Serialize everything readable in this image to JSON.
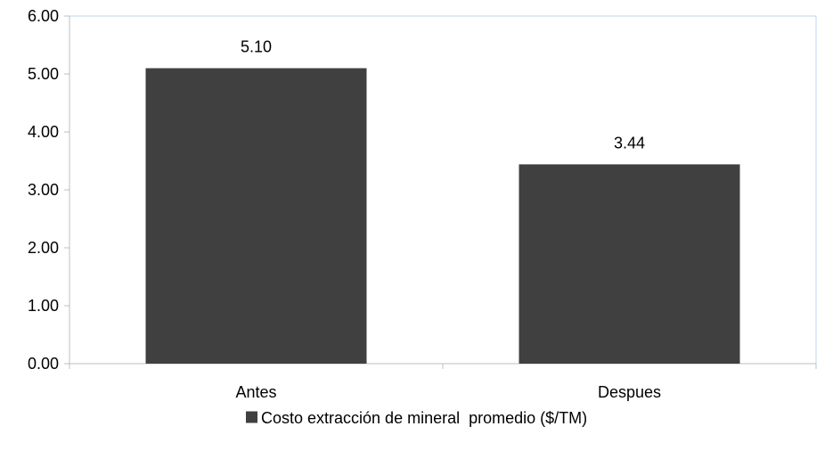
{
  "chart_data": {
    "type": "bar",
    "categories": [
      "Antes",
      "Despues"
    ],
    "series": [
      {
        "name": "Costo extracción de mineral  promedio ($/TM)",
        "values": [
          5.1,
          3.44
        ],
        "color": "#404040"
      }
    ],
    "data_labels": [
      "5.10",
      "3.44"
    ],
    "y_ticks": [
      "0.00",
      "1.00",
      "2.00",
      "3.00",
      "4.00",
      "5.00",
      "6.00"
    ],
    "ylim": [
      0,
      6
    ],
    "grid": false,
    "legend_position": "bottom",
    "axis_color": "#bfbfbf",
    "frame_color": "#bdd7ee"
  }
}
